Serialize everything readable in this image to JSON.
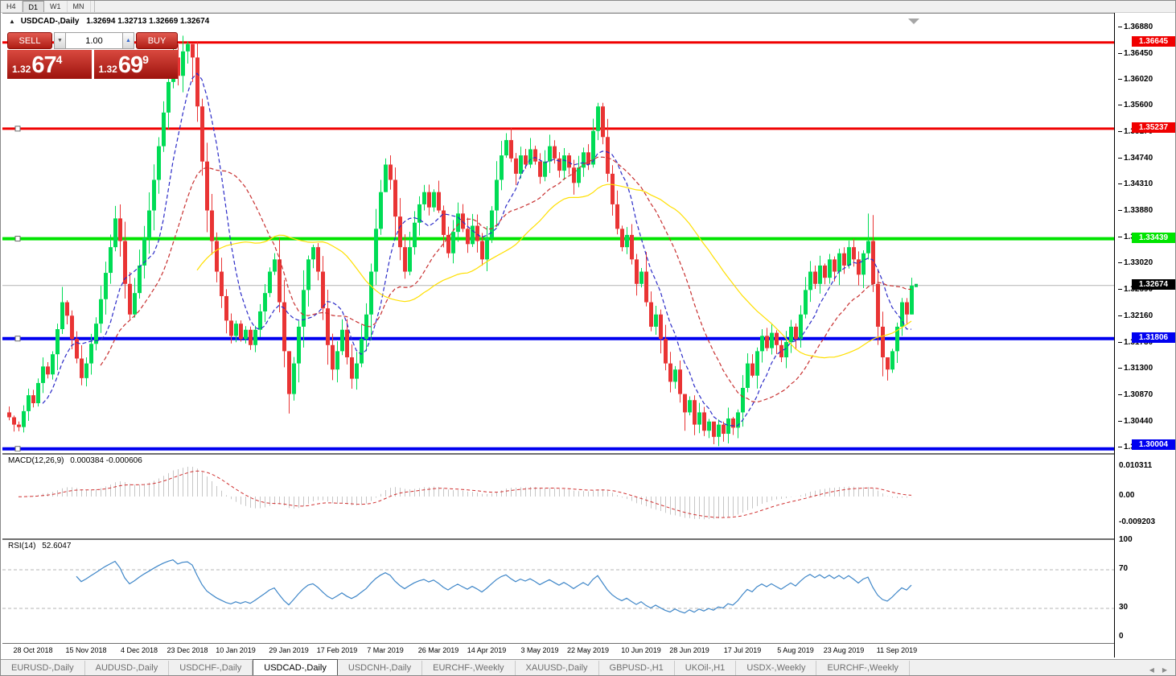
{
  "toolbar": {
    "timeframes": [
      {
        "label": "H4",
        "active": false
      },
      {
        "label": "D1",
        "active": true
      },
      {
        "label": "W1",
        "active": false
      },
      {
        "label": "MN",
        "active": false
      }
    ]
  },
  "symbol_bar": {
    "arrow": "▲",
    "symbol": "USDCAD-,Daily",
    "ohlc": "1.32694 1.32713 1.32669 1.32674"
  },
  "trade_panel": {
    "sell_label": "SELL",
    "buy_label": "BUY",
    "amount": "1.00",
    "spin_down": "▼",
    "spin_up": "▲",
    "sell_price": {
      "prefix": "1.32",
      "main": "67",
      "sup": "4"
    },
    "buy_price": {
      "prefix": "1.32",
      "main": "69",
      "sup": "9"
    }
  },
  "chart_data": [
    {
      "id": "price",
      "type": "candlestick",
      "symbol": "USDCAD-,Daily",
      "bull_color": "#00DC55",
      "bear_color": "#E93434",
      "ylim": [
        1.29961,
        1.37116
      ],
      "first_open": 1.306,
      "closes": [
        1.3052,
        1.304,
        1.3036,
        1.3062,
        1.3088,
        1.3075,
        1.3108,
        1.3135,
        1.3122,
        1.3155,
        1.3196,
        1.324,
        1.3218,
        1.318,
        1.3148,
        1.3116,
        1.314,
        1.3172,
        1.3205,
        1.3245,
        1.3288,
        1.333,
        1.3377,
        1.334,
        1.327,
        1.322,
        1.3255,
        1.33,
        1.3345,
        1.339,
        1.344,
        1.3495,
        1.355,
        1.36,
        1.364,
        1.361,
        1.365,
        1.3662,
        1.364,
        1.356,
        1.347,
        1.339,
        1.334,
        1.329,
        1.325,
        1.321,
        1.3185,
        1.3205,
        1.318,
        1.3195,
        1.317,
        1.3195,
        1.3225,
        1.3255,
        1.329,
        1.331,
        1.324,
        1.316,
        1.309,
        1.314,
        1.32,
        1.326,
        1.331,
        1.333,
        1.329,
        1.323,
        1.317,
        1.313,
        1.316,
        1.3195,
        1.315,
        1.3115,
        1.314,
        1.318,
        1.322,
        1.329,
        1.336,
        1.342,
        1.3465,
        1.344,
        1.338,
        1.333,
        1.329,
        1.333,
        1.337,
        1.34,
        1.342,
        1.3395,
        1.342,
        1.339,
        1.335,
        1.332,
        1.3355,
        1.3385,
        1.336,
        1.3335,
        1.3365,
        1.334,
        1.331,
        1.3345,
        1.339,
        1.344,
        1.348,
        1.3505,
        1.3475,
        1.345,
        1.348,
        1.3465,
        1.349,
        1.347,
        1.3445,
        1.347,
        1.3495,
        1.3475,
        1.3455,
        1.348,
        1.346,
        1.3435,
        1.346,
        1.3485,
        1.3465,
        1.352,
        1.356,
        1.351,
        1.345,
        1.34,
        1.336,
        1.333,
        1.335,
        1.331,
        1.327,
        1.329,
        1.324,
        1.32,
        1.322,
        1.318,
        1.314,
        1.311,
        1.313,
        1.309,
        1.306,
        1.308,
        1.304,
        1.306,
        1.303,
        1.3045,
        1.302,
        1.304,
        1.3025,
        1.305,
        1.3035,
        1.306,
        1.31,
        1.314,
        1.312,
        1.316,
        1.3185,
        1.3165,
        1.319,
        1.317,
        1.315,
        1.3175,
        1.32,
        1.318,
        1.322,
        1.326,
        1.329,
        1.327,
        1.33,
        1.328,
        1.331,
        1.329,
        1.332,
        1.33,
        1.333,
        1.331,
        1.3285,
        1.332,
        1.334,
        1.327,
        1.32,
        1.315,
        1.313,
        1.316,
        1.32,
        1.324,
        1.322,
        1.3267
      ],
      "wick_overrides": {
        "37": [
          1.3666,
          1.363
        ],
        "38": [
          1.3662,
          1.36
        ],
        "58": [
          1.311,
          1.3058
        ],
        "77": [
          1.344,
          1.335
        ],
        "78": [
          1.3475,
          1.342
        ],
        "121": [
          1.354,
          1.346
        ],
        "122": [
          1.3566,
          1.3505
        ],
        "140": [
          1.3075,
          1.303
        ],
        "146": [
          1.304,
          1.3008
        ],
        "148": [
          1.3045,
          1.3012
        ],
        "178": [
          1.3385,
          1.331
        ],
        "182": [
          1.315,
          1.3112
        ],
        "187": [
          1.328,
          1.324
        ]
      },
      "hlines": [
        {
          "price": 1.36645,
          "label": "1.36645",
          "color": "#F00000",
          "width": 3
        },
        {
          "price": 1.35237,
          "label": "1.35237",
          "color": "#F00000",
          "width": 3
        },
        {
          "price": 1.33439,
          "label": "1.33439",
          "color": "#00E400",
          "width": 4
        },
        {
          "price": 1.31806,
          "label": "1.31806",
          "color": "#0000F0",
          "width": 4
        },
        {
          "price": 1.30004,
          "label": "1.30004",
          "color": "#0000F0",
          "width": 4
        }
      ],
      "current_price": {
        "value": 1.32674,
        "label": "1.32674",
        "line_color": "#b4b4b4",
        "tag_color": "#000000"
      },
      "moving_averages": [
        {
          "period": 8,
          "color": "#2B2BC8",
          "style": "dash"
        },
        {
          "period": 20,
          "color": "#C83030",
          "style": "dash"
        },
        {
          "period": 40,
          "color": "#FFDF00",
          "style": "solid"
        }
      ],
      "y_ticks": [
        1.3688,
        1.3645,
        1.3602,
        1.356,
        1.3517,
        1.3474,
        1.3431,
        1.3388,
        1.3345,
        1.3302,
        1.3259,
        1.3216,
        1.3173,
        1.313,
        1.3087,
        1.3044,
        1.3001
      ],
      "x_ticks": [
        {
          "i": 5,
          "label": "28 Oct 2018"
        },
        {
          "i": 16,
          "label": "15 Nov 2018"
        },
        {
          "i": 27,
          "label": "4 Dec 2018"
        },
        {
          "i": 37,
          "label": "23 Dec 2018"
        },
        {
          "i": 47,
          "label": "10 Jan 2019"
        },
        {
          "i": 58,
          "label": "29 Jan 2019"
        },
        {
          "i": 68,
          "label": "17 Feb 2019"
        },
        {
          "i": 78,
          "label": "7 Mar 2019"
        },
        {
          "i": 89,
          "label": "26 Mar 2019"
        },
        {
          "i": 99,
          "label": "14 Apr 2019"
        },
        {
          "i": 110,
          "label": "3 May 2019"
        },
        {
          "i": 120,
          "label": "22 May 2019"
        },
        {
          "i": 131,
          "label": "10 Jun 2019"
        },
        {
          "i": 141,
          "label": "28 Jun 2019"
        },
        {
          "i": 152,
          "label": "17 Jul 2019"
        },
        {
          "i": 163,
          "label": "5 Aug 2019"
        },
        {
          "i": 173,
          "label": "23 Aug 2019"
        },
        {
          "i": 184,
          "label": "11 Sep 2019"
        }
      ]
    },
    {
      "id": "macd",
      "type": "bar",
      "label": "MACD(12,26,9)",
      "values_label": "0.000384 -0.000606",
      "params": [
        12,
        26,
        9
      ],
      "derived_from": "price.closes",
      "hist_color": "#c6c6c6",
      "signal_color": "#D03030",
      "axis": [
        {
          "v": 0.010311,
          "label": "0.010311"
        },
        {
          "v": 0,
          "label": "0.00"
        },
        {
          "v": -0.009203,
          "label": "-0.009203"
        }
      ]
    },
    {
      "id": "rsi",
      "type": "line",
      "label": "RSI(14)",
      "value_label": "52.6047",
      "period": 14,
      "derived_from": "price.closes",
      "line_color": "#3E86C8",
      "levels": [
        70,
        30
      ],
      "axis": [
        {
          "v": 100,
          "label": "100"
        },
        {
          "v": 70,
          "label": "70"
        },
        {
          "v": 30,
          "label": "30"
        },
        {
          "v": 0,
          "label": "0"
        }
      ]
    }
  ],
  "tab_bar": {
    "tabs": [
      {
        "label": "EURUSD-,Daily",
        "active": false
      },
      {
        "label": "AUDUSD-,Daily",
        "active": false
      },
      {
        "label": "USDCHF-,Daily",
        "active": false
      },
      {
        "label": "USDCAD-,Daily",
        "active": true
      },
      {
        "label": "USDCNH-,Daily",
        "active": false
      },
      {
        "label": "EURCHF-,Weekly",
        "active": false
      },
      {
        "label": "XAUUSD-,Daily",
        "active": false
      },
      {
        "label": "GBPUSD-,H1",
        "active": false
      },
      {
        "label": "UKOil-,H1",
        "active": false
      },
      {
        "label": "USDX-,Weekly",
        "active": false
      },
      {
        "label": "EURCHF-,Weekly",
        "active": false
      }
    ],
    "nav_left": "◀",
    "nav_right": "▶"
  }
}
